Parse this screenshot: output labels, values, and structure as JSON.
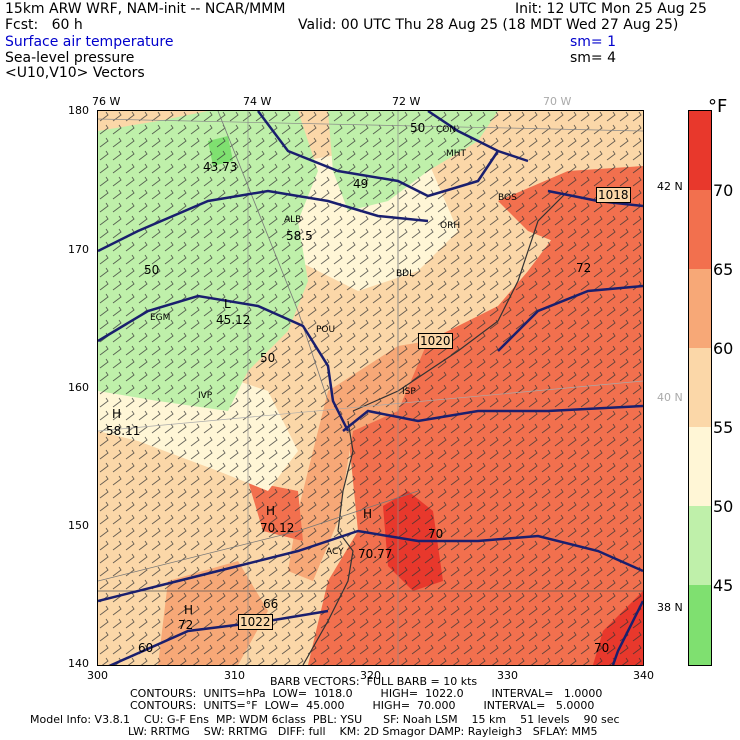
{
  "header": {
    "model": "15km ARW WRF, NAM-init -- NCAR/MMM",
    "init": "Init: 12 UTC Mon 25 Aug 25",
    "fcst": "Fcst:   60 h",
    "valid": "Valid: 00 UTC Thu 28 Aug 25 (18 MDT Wed 27 Aug 25)",
    "field1": "Surface air temperature",
    "field2": "Sea-level pressure",
    "field3": "<U10,V10> Vectors",
    "sm1": "sm= 1",
    "sm2": "sm= 4"
  },
  "axes": {
    "top_lon": [
      "76 W",
      "74 W",
      "72 W",
      "70 W"
    ],
    "right_lat": [
      "42 N",
      "40 N",
      "38 N"
    ],
    "left_y": [
      "180",
      "170",
      "160",
      "150",
      "140"
    ],
    "bottom_x": [
      "300",
      "310",
      "320",
      "330",
      "340"
    ]
  },
  "colorbar": {
    "unit": "°F",
    "labels": [
      "70",
      "65",
      "60",
      "55",
      "50",
      "45"
    ],
    "bands": [
      {
        "color": "#e8382c"
      },
      {
        "color": "#f2704e"
      },
      {
        "color": "#f7a877"
      },
      {
        "color": "#fbd7a8"
      },
      {
        "color": "#fff6d6"
      },
      {
        "color": "#bff0aa"
      },
      {
        "color": "#7fe070"
      }
    ]
  },
  "map_labels": {
    "temp_50_con": "50",
    "con": "CON",
    "mht": "MHT",
    "low_temp": "43.73",
    "i_49": "49",
    "alb": "ALB",
    "alb_val": "58.5",
    "orh": "ORH",
    "bdl": "BDL",
    "temp_50_w": "50",
    "l_mark": "L",
    "l_val": "45.12",
    "egm": "EGM",
    "pou": "POU",
    "p1020": "1020",
    "isp": "ISP",
    "t_50_mid": "50",
    "ivp": "IVP",
    "h_west": "H",
    "h_west_val": "58.11",
    "h_mid": "H",
    "h_mid_val": "70.12",
    "h_acy": "H",
    "h_acy_val": "70.77",
    "acy": "ACY",
    "t70": "70",
    "p1018": "1018",
    "t_72": "72",
    "h_sw": "H",
    "h_sw_val": "72",
    "p1022": "1022",
    "t_66": "66",
    "t_60": "60",
    "t_70_se": "70",
    "bos": "BOS"
  },
  "footer": {
    "barb": "BARB VECTORS:  FULL BARB = 10 kts",
    "contours1": "CONTOURS:  UNITS=hPa  LOW=  1018.0        HIGH=  1022.0        INTERVAL=   1.0000",
    "contours2": "CONTOURS:  UNITS=°F  LOW=  45.000        HIGH=  70.000        INTERVAL=   5.0000",
    "model1": "Model Info: V3.8.1    CU: G-F Ens  MP: WDM 6class  PBL: YSU      SF: Noah LSM    15 km    51 levels    90 sec",
    "model2": "LW: RRTMG    SW: RRTMG   DIFF: full    KM: 2D Smagor DAMP: Rayleigh3   SFLAY: MM5"
  }
}
